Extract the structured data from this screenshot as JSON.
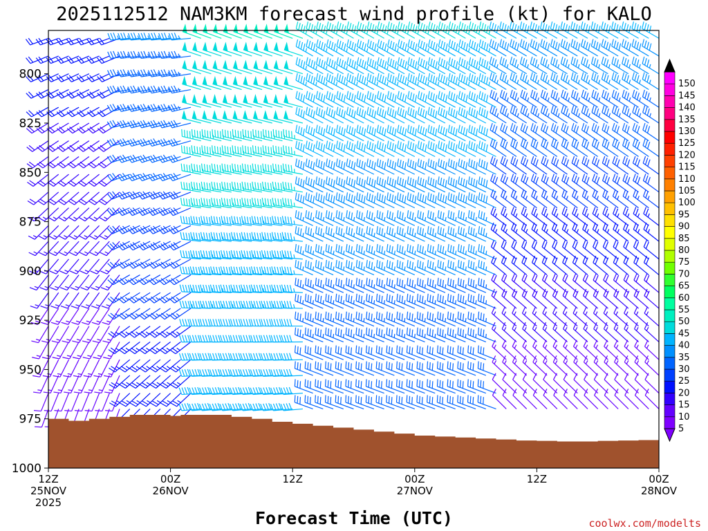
{
  "chart_data": {
    "type": "wind_barb_profile",
    "title": "2025112512 NAM3KM forecast wind profile (kt) for KALO",
    "xlabel": "Forecast Time (UTC)",
    "credit": "coolwx.com/modelts",
    "units": "kt",
    "x_hours": [
      0,
      60
    ],
    "x_ticks": [
      {
        "hour": 0,
        "lines": [
          "12Z",
          "25NOV",
          "2025"
        ]
      },
      {
        "hour": 12,
        "lines": [
          "00Z",
          "26NOV"
        ]
      },
      {
        "hour": 24,
        "lines": [
          "12Z"
        ]
      },
      {
        "hour": 36,
        "lines": [
          "00Z",
          "27NOV"
        ]
      },
      {
        "hour": 48,
        "lines": [
          "12Z"
        ]
      },
      {
        "hour": 60,
        "lines": [
          "00Z",
          "28NOV"
        ]
      }
    ],
    "y_range_hpa": [
      1000,
      778
    ],
    "y_ticks": [
      "800",
      "825",
      "850",
      "875",
      "900",
      "925",
      "950",
      "975",
      "1000"
    ],
    "y_tick_values": [
      800,
      825,
      850,
      875,
      900,
      925,
      950,
      975,
      1000
    ],
    "levels_hpa": [
      782,
      791,
      800,
      808,
      817,
      825,
      834,
      842,
      851,
      860,
      868,
      877,
      885,
      894,
      902,
      911,
      919,
      928,
      936,
      945,
      953,
      962,
      970
    ],
    "hours_step": 1,
    "wind_model": {
      "phases": [
        {
          "hours": [
            0,
            7
          ],
          "speed_top": 22,
          "speed_bottom": 12,
          "dir_top": 250,
          "dir_bottom": 200
        },
        {
          "hours": [
            8,
            14
          ],
          "speed_top": 35,
          "speed_bottom": 22,
          "dir_top": 265,
          "dir_bottom": 225
        },
        {
          "hours": [
            15,
            25
          ],
          "speed_top": 50,
          "speed_bottom": 40,
          "dir_top": 290,
          "dir_bottom": 265
        },
        {
          "hours": [
            26,
            44
          ],
          "speed_top": 45,
          "speed_bottom": 30,
          "dir_top": 300,
          "dir_bottom": 290
        },
        {
          "hours": [
            45,
            60
          ],
          "speed_top": 40,
          "speed_bottom": 10,
          "dir_top": 300,
          "dir_bottom": 315
        }
      ]
    },
    "surface_pressure_hpa": [
      [
        0,
        975
      ],
      [
        2,
        976
      ],
      [
        4,
        975
      ],
      [
        6,
        974
      ],
      [
        8,
        973
      ],
      [
        10,
        973
      ],
      [
        12,
        973.5
      ],
      [
        13,
        973
      ],
      [
        16,
        973
      ],
      [
        18,
        974
      ],
      [
        20,
        975
      ],
      [
        22,
        976.5
      ],
      [
        24,
        977.5
      ],
      [
        26,
        978.5
      ],
      [
        28,
        979.5
      ],
      [
        30,
        980.5
      ],
      [
        32,
        981.5
      ],
      [
        34,
        982.5
      ],
      [
        36,
        983.5
      ],
      [
        38,
        984
      ],
      [
        40,
        984.5
      ],
      [
        42,
        985
      ],
      [
        44,
        985.5
      ],
      [
        46,
        986
      ],
      [
        48,
        986.2
      ],
      [
        50,
        986.5
      ],
      [
        52,
        986.5
      ],
      [
        54,
        986.2
      ],
      [
        56,
        986
      ],
      [
        58,
        985.8
      ],
      [
        60,
        985.8
      ]
    ],
    "terrain_color": "#a0522d",
    "colorbar": {
      "labels": [
        "5",
        "10",
        "15",
        "20",
        "25",
        "30",
        "35",
        "40",
        "45",
        "50",
        "55",
        "60",
        "65",
        "70",
        "75",
        "80",
        "85",
        "90",
        "95",
        "100",
        "105",
        "110",
        "115",
        "120",
        "125",
        "130",
        "135",
        "140",
        "145",
        "150"
      ],
      "colors": [
        "#7f00ff",
        "#6400ff",
        "#3200ff",
        "#0010ff",
        "#0040ff",
        "#0064ff",
        "#0090ff",
        "#00b4ff",
        "#00dcdc",
        "#00f0c0",
        "#00ffa0",
        "#00ff60",
        "#30ff30",
        "#70ff00",
        "#b0ff00",
        "#e0ff00",
        "#ffff00",
        "#ffe000",
        "#ffc000",
        "#ffa000",
        "#ff8000",
        "#ff6000",
        "#ff4000",
        "#ff2000",
        "#ff0000",
        "#ff0040",
        "#ff0080",
        "#ff00b0",
        "#ff00e0",
        "#ff00ff"
      ]
    }
  }
}
